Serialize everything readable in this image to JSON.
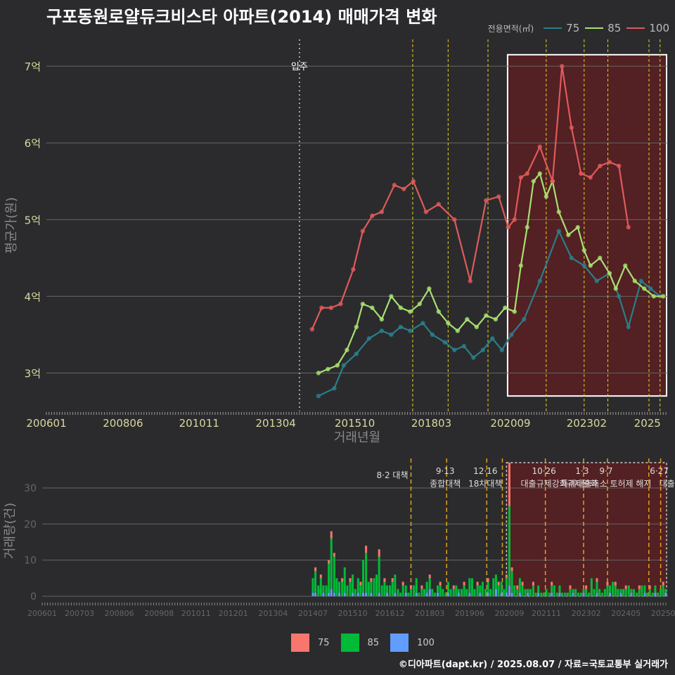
{
  "title": "구포동원로얄듀크비스타 아파트(2014) 매매가격 변화",
  "credit": "©디아파트(dapt.kr) / 2025.08.07 / 자료=국토교통부 실거래가",
  "legend_top": {
    "title": "전용면적(㎡)",
    "items": [
      {
        "label": "75",
        "color": "#2a7e8a"
      },
      {
        "label": "85",
        "color": "#a8e070"
      },
      {
        "label": "100",
        "color": "#e05a5a"
      }
    ]
  },
  "legend_bottom": {
    "items": [
      {
        "label": "75",
        "color": "#f8766d"
      },
      {
        "label": "85",
        "color": "#00ba38"
      },
      {
        "label": "100",
        "color": "#619cff"
      }
    ]
  },
  "colors": {
    "bg": "#2b2b2d",
    "grid": "#666666",
    "vline": "#e8d020",
    "bar_vline": "#e0a020",
    "highlight_fill": "#5a1e22",
    "axis_text": "#d8d8a0",
    "ylabel_text": "#888888"
  },
  "chart_data": [
    {
      "type": "line",
      "title": "구포동원로얄듀크비스타 아파트(2014) 매매가격 변화",
      "xlabel": "거래년월",
      "ylabel": "평균가(원)",
      "x_range": [
        2006.0,
        2025.65
      ],
      "ylim": [
        2.5,
        7.35
      ],
      "y_ticks": [
        {
          "v": 3,
          "label": "3억"
        },
        {
          "v": 4,
          "label": "4억"
        },
        {
          "v": 5,
          "label": "5억"
        },
        {
          "v": 6,
          "label": "6억"
        },
        {
          "v": 7,
          "label": "7억"
        }
      ],
      "x_ticks": [
        {
          "v": 2006.0,
          "label": "200601"
        },
        {
          "v": 2008.42,
          "label": "200806"
        },
        {
          "v": 2010.83,
          "label": "201011"
        },
        {
          "v": 2013.25,
          "label": "201304"
        },
        {
          "v": 2015.75,
          "label": "201510"
        },
        {
          "v": 2018.17,
          "label": "201803"
        },
        {
          "v": 2020.67,
          "label": "202009"
        },
        {
          "v": 2023.08,
          "label": "202302"
        },
        {
          "v": 2025.0,
          "label": "2025"
        }
      ],
      "annotation": {
        "x": 2014.0,
        "label": "입주"
      },
      "policy_lines": [
        2017.58,
        2018.7,
        2019.96,
        2021.8,
        2023.0,
        2023.75,
        2025.05,
        2025.4
      ],
      "highlight": {
        "x0": 2020.58,
        "x1": 2025.65,
        "y0": 2.7,
        "y1": 7.15
      },
      "series": [
        {
          "name": "75",
          "color": "#2a7e8a",
          "x": [
            2014.6,
            2015.1,
            2015.4,
            2015.8,
            2016.2,
            2016.6,
            2016.9,
            2017.2,
            2017.5,
            2017.9,
            2018.2,
            2018.6,
            2018.9,
            2019.2,
            2019.5,
            2019.8,
            2020.1,
            2020.4,
            2020.7,
            2021.1,
            2021.6,
            2022.2,
            2022.6,
            2023.0,
            2023.4,
            2023.8,
            2024.1,
            2024.4,
            2024.8,
            2025.1,
            2025.4
          ],
          "y": [
            2.7,
            2.8,
            3.1,
            3.25,
            3.45,
            3.55,
            3.5,
            3.6,
            3.55,
            3.65,
            3.5,
            3.4,
            3.3,
            3.35,
            3.2,
            3.3,
            3.45,
            3.3,
            3.5,
            3.7,
            4.2,
            4.85,
            4.5,
            4.4,
            4.2,
            4.3,
            4.0,
            3.6,
            4.2,
            4.1,
            4.0
          ]
        },
        {
          "name": "85",
          "color": "#a8e070",
          "x": [
            2014.6,
            2014.9,
            2015.2,
            2015.5,
            2015.8,
            2016.0,
            2016.3,
            2016.6,
            2016.9,
            2017.2,
            2017.5,
            2017.8,
            2018.1,
            2018.4,
            2018.7,
            2019.0,
            2019.3,
            2019.6,
            2019.9,
            2020.2,
            2020.5,
            2020.8,
            2021.0,
            2021.2,
            2021.4,
            2021.6,
            2021.8,
            2022.0,
            2022.2,
            2022.5,
            2022.8,
            2023.0,
            2023.2,
            2023.5,
            2023.8,
            2024.0,
            2024.3,
            2024.6,
            2024.9,
            2025.2,
            2025.5
          ],
          "y": [
            3.0,
            3.05,
            3.1,
            3.3,
            3.6,
            3.9,
            3.85,
            3.7,
            4.0,
            3.85,
            3.8,
            3.9,
            4.1,
            3.8,
            3.65,
            3.55,
            3.7,
            3.6,
            3.75,
            3.7,
            3.85,
            3.8,
            4.4,
            4.9,
            5.5,
            5.6,
            5.3,
            5.5,
            5.1,
            4.8,
            4.9,
            4.6,
            4.4,
            4.5,
            4.3,
            4.1,
            4.4,
            4.2,
            4.1,
            4.0,
            4.0
          ]
        },
        {
          "name": "100",
          "color": "#e05a5a",
          "x": [
            2014.4,
            2014.7,
            2015.0,
            2015.3,
            2015.7,
            2016.0,
            2016.3,
            2016.6,
            2017.0,
            2017.3,
            2017.6,
            2018.0,
            2018.4,
            2018.9,
            2019.4,
            2019.9,
            2020.3,
            2020.6,
            2020.8,
            2021.0,
            2021.2,
            2021.6,
            2022.0,
            2022.3,
            2022.6,
            2022.9,
            2023.2,
            2023.5,
            2023.8,
            2024.1,
            2024.4
          ],
          "y": [
            3.57,
            3.85,
            3.85,
            3.9,
            4.35,
            4.85,
            5.05,
            5.1,
            5.45,
            5.4,
            5.5,
            5.1,
            5.2,
            5.0,
            4.2,
            5.25,
            5.3,
            4.9,
            5.0,
            5.55,
            5.6,
            5.95,
            5.5,
            7.0,
            6.2,
            5.6,
            5.55,
            5.7,
            5.75,
            5.7,
            4.9
          ]
        }
      ]
    },
    {
      "type": "bar",
      "ylabel": "거래량(건)",
      "x_range": [
        2006.0,
        2025.65
      ],
      "ylim": [
        0,
        37
      ],
      "y_ticks": [
        0,
        10,
        20,
        30
      ],
      "x_ticks": [
        {
          "v": 2006.0,
          "label": "200601"
        },
        {
          "v": 2007.17,
          "label": "200703"
        },
        {
          "v": 2008.42,
          "label": "200806"
        },
        {
          "v": 2009.67,
          "label": "200908"
        },
        {
          "v": 2010.83,
          "label": "201011"
        },
        {
          "v": 2012.0,
          "label": "201201"
        },
        {
          "v": 2013.25,
          "label": "201304"
        },
        {
          "v": 2014.5,
          "label": "201407"
        },
        {
          "v": 2015.75,
          "label": "201510"
        },
        {
          "v": 2016.92,
          "label": "201612"
        },
        {
          "v": 2018.17,
          "label": "201803"
        },
        {
          "v": 2019.42,
          "label": "201906"
        },
        {
          "v": 2020.67,
          "label": "202009"
        },
        {
          "v": 2021.83,
          "label": "202111"
        },
        {
          "v": 2023.08,
          "label": "202302"
        },
        {
          "v": 2024.33,
          "label": "202405"
        },
        {
          "v": 2025.5,
          "label": "20250"
        }
      ],
      "highlight": {
        "x0": 2020.58,
        "x1": 2025.65
      },
      "policy_lines": [
        {
          "x": 2017.58,
          "date": "8·2 대책",
          "desc": ""
        },
        {
          "x": 2018.7,
          "date": "9·13",
          "desc": "종합대책"
        },
        {
          "x": 2019.96,
          "date": "12·16",
          "desc": "18차대책"
        },
        {
          "x": 2020.45,
          "date": "",
          "desc": ""
        },
        {
          "x": 2021.8,
          "date": "10·26",
          "desc": "대출규제강화"
        },
        {
          "x": 2023.0,
          "date": "1·3",
          "desc": "규제완화"
        },
        {
          "x": 2023.75,
          "date": "9·7",
          "desc": "특례대출축소 토허제 해지"
        },
        {
          "x": 2025.05,
          "date": "",
          "desc": ""
        },
        {
          "x": 2025.42,
          "date": "6·27",
          "desc": "대출규"
        }
      ],
      "series": [
        {
          "name": "75",
          "color": "#f8766d"
        },
        {
          "name": "85",
          "color": "#00ba38"
        },
        {
          "name": "100",
          "color": "#619cff"
        }
      ],
      "months": {
        "x": [
          2014.5,
          2014.58,
          2014.67,
          2014.75,
          2014.83,
          2014.92,
          2015.0,
          2015.08,
          2015.17,
          2015.25,
          2015.33,
          2015.42,
          2015.5,
          2015.58,
          2015.67,
          2015.75,
          2015.83,
          2015.92,
          2016.0,
          2016.08,
          2016.17,
          2016.25,
          2016.33,
          2016.42,
          2016.5,
          2016.58,
          2016.67,
          2016.75,
          2016.83,
          2016.92,
          2017.0,
          2017.08,
          2017.17,
          2017.25,
          2017.33,
          2017.42,
          2017.5,
          2017.58,
          2017.67,
          2017.75,
          2017.83,
          2017.92,
          2018.0,
          2018.08,
          2018.17,
          2018.25,
          2018.33,
          2018.42,
          2018.5,
          2018.58,
          2018.67,
          2018.75,
          2018.83,
          2018.92,
          2019.0,
          2019.08,
          2019.17,
          2019.25,
          2019.33,
          2019.42,
          2019.5,
          2019.58,
          2019.67,
          2019.75,
          2019.83,
          2019.92,
          2020.0,
          2020.08,
          2020.17,
          2020.25,
          2020.33,
          2020.42,
          2020.5,
          2020.58,
          2020.67,
          2020.75,
          2020.83,
          2020.92,
          2021.0,
          2021.08,
          2021.17,
          2021.25,
          2021.33,
          2021.42,
          2021.5,
          2021.58,
          2021.67,
          2021.75,
          2021.83,
          2021.92,
          2022.0,
          2022.08,
          2022.17,
          2022.25,
          2022.33,
          2022.42,
          2022.5,
          2022.58,
          2022.67,
          2022.75,
          2022.83,
          2022.92,
          2023.0,
          2023.08,
          2023.17,
          2023.25,
          2023.33,
          2023.42,
          2023.5,
          2023.58,
          2023.67,
          2023.75,
          2023.83,
          2023.92,
          2024.0,
          2024.08,
          2024.17,
          2024.25,
          2024.33,
          2024.42,
          2024.5,
          2024.58,
          2024.67,
          2024.75,
          2024.83,
          2024.92,
          2025.0,
          2025.08,
          2025.17,
          2025.25,
          2025.33,
          2025.42,
          2025.5,
          2025.58
        ],
        "s75": [
          0,
          1,
          0,
          1,
          0,
          0,
          1,
          2,
          1,
          0,
          0,
          1,
          0,
          0,
          1,
          0,
          0,
          0,
          1,
          0,
          2,
          0,
          1,
          0,
          0,
          2,
          0,
          1,
          0,
          0,
          1,
          0,
          0,
          0,
          1,
          0,
          0,
          1,
          0,
          0,
          0,
          1,
          0,
          0,
          1,
          0,
          0,
          0,
          1,
          0,
          0,
          0,
          0,
          1,
          0,
          0,
          0,
          1,
          0,
          0,
          0,
          0,
          1,
          0,
          0,
          0,
          1,
          0,
          0,
          0,
          1,
          0,
          0,
          1,
          12,
          1,
          0,
          1,
          0,
          1,
          0,
          0,
          0,
          1,
          0,
          0,
          0,
          0,
          0,
          0,
          1,
          0,
          0,
          0,
          0,
          0,
          0,
          1,
          0,
          0,
          0,
          0,
          0,
          1,
          0,
          0,
          0,
          1,
          0,
          0,
          0,
          1,
          0,
          0,
          1,
          0,
          0,
          0,
          1,
          0,
          0,
          0,
          0,
          1,
          0,
          0,
          0,
          1,
          0,
          0,
          0,
          0,
          1,
          0
        ],
        "s85": [
          4,
          6,
          3,
          5,
          2,
          3,
          8,
          14,
          10,
          5,
          3,
          4,
          7,
          3,
          4,
          5,
          2,
          4,
          3,
          9,
          11,
          4,
          3,
          5,
          6,
          10,
          3,
          4,
          2,
          3,
          4,
          5,
          2,
          1,
          3,
          2,
          1,
          2,
          3,
          4,
          1,
          2,
          2,
          3,
          3,
          2,
          1,
          2,
          3,
          2,
          1,
          3,
          2,
          2,
          3,
          1,
          2,
          3,
          2,
          4,
          5,
          2,
          3,
          2,
          4,
          2,
          3,
          2,
          5,
          4,
          3,
          3,
          2,
          4,
          22,
          6,
          3,
          2,
          4,
          3,
          2,
          1,
          2,
          3,
          1,
          2,
          1,
          1,
          2,
          1,
          2,
          3,
          1,
          2,
          1,
          1,
          1,
          2,
          1,
          2,
          1,
          1,
          1,
          2,
          1,
          5,
          2,
          3,
          2,
          1,
          2,
          3,
          2,
          4,
          3,
          2,
          1,
          2,
          2,
          3,
          1,
          2,
          1,
          2,
          3,
          2,
          1,
          2,
          1,
          2,
          1,
          2,
          3,
          1
        ],
        "s100": [
          1,
          1,
          0,
          0,
          1,
          0,
          1,
          2,
          1,
          0,
          1,
          0,
          1,
          0,
          0,
          1,
          0,
          1,
          0,
          1,
          1,
          0,
          1,
          0,
          0,
          1,
          0,
          0,
          1,
          0,
          0,
          1,
          0,
          0,
          0,
          1,
          0,
          0,
          0,
          1,
          0,
          0,
          0,
          1,
          2,
          0,
          0,
          1,
          0,
          0,
          0,
          1,
          0,
          0,
          0,
          1,
          0,
          0,
          0,
          1,
          0,
          0,
          0,
          1,
          0,
          0,
          1,
          0,
          0,
          2,
          0,
          1,
          0,
          1,
          3,
          1,
          0,
          0,
          1,
          0,
          0,
          1,
          0,
          0,
          0,
          1,
          0,
          0,
          0,
          0,
          1,
          0,
          0,
          1,
          0,
          0,
          0,
          0,
          1,
          0,
          0,
          0,
          1,
          0,
          0,
          0,
          0,
          1,
          0,
          0,
          0,
          0,
          1,
          0,
          0,
          0,
          1,
          0,
          0,
          0,
          1,
          0,
          0,
          0,
          0,
          1,
          0,
          0,
          0,
          1,
          0,
          0,
          0,
          1
        ]
      }
    }
  ]
}
